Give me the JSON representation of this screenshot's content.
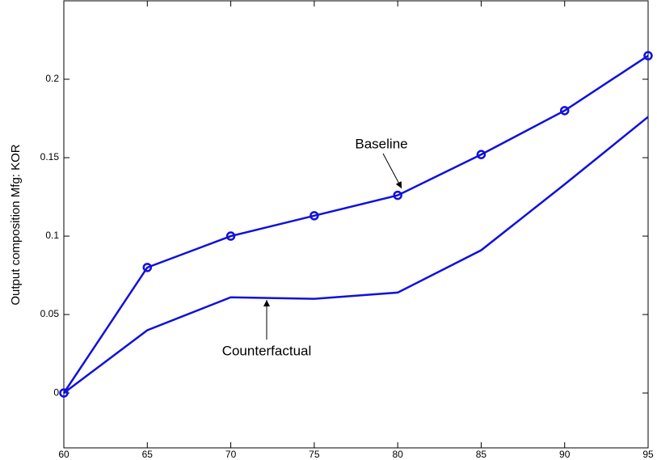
{
  "chart_data": {
    "type": "line",
    "y_label": "Output composition Mfg: KOR",
    "x": [
      60,
      65,
      70,
      75,
      80,
      85,
      90,
      95
    ],
    "series": [
      {
        "color": "#1010dd",
        "marker": "o",
        "values": [
          0,
          0.08,
          0.1,
          0.113,
          0.126,
          0.152,
          0.18,
          0.215
        ]
      },
      {
        "color": "#1010dd",
        "values": [
          0,
          0.04,
          0.061,
          0.06,
          0.064,
          0.091,
          0.133,
          0.176
        ]
      }
    ],
    "annotations": [
      {
        "text": "Baseline"
      },
      {
        "text": "Counterfactual"
      }
    ],
    "xlim": [
      60,
      95
    ],
    "xticks": [
      60,
      65,
      70,
      75,
      80,
      85,
      90,
      95
    ],
    "ylim": [
      -0.035,
      0.25
    ],
    "yticks": [
      0,
      0.05,
      0.1,
      0.15,
      0.2
    ],
    "grid": false
  }
}
